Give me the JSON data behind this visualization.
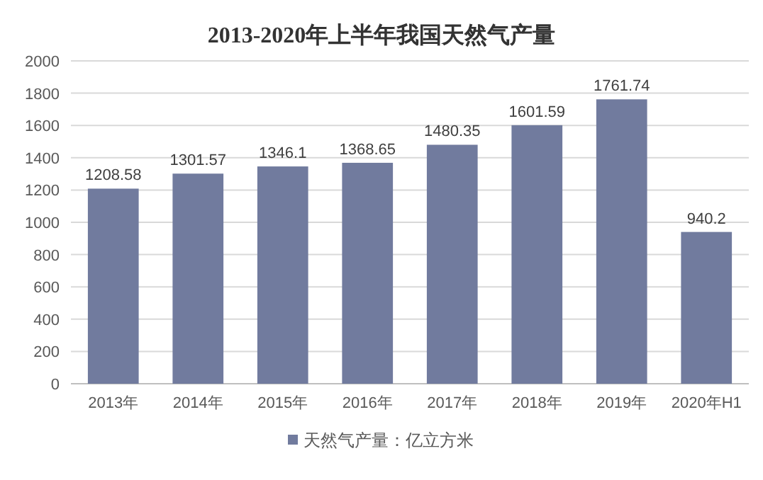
{
  "chart_data": {
    "type": "bar",
    "title": "2013-2020年上半年我国天然气产量",
    "categories": [
      "2013年",
      "2014年",
      "2015年",
      "2016年",
      "2017年",
      "2018年",
      "2019年",
      "2020年H1"
    ],
    "series": [
      {
        "name": "天然气产量：亿立方米",
        "color": "#717b9e",
        "values": [
          1208.58,
          1301.57,
          1346.1,
          1368.65,
          1480.35,
          1601.59,
          1761.74,
          940.2
        ]
      }
    ],
    "ylim": [
      0,
      2000
    ],
    "yticks": [
      0,
      200,
      400,
      600,
      800,
      1000,
      1200,
      1400,
      1600,
      1800,
      2000
    ],
    "grid": "y",
    "legend": "bottom",
    "data_labels": true
  }
}
